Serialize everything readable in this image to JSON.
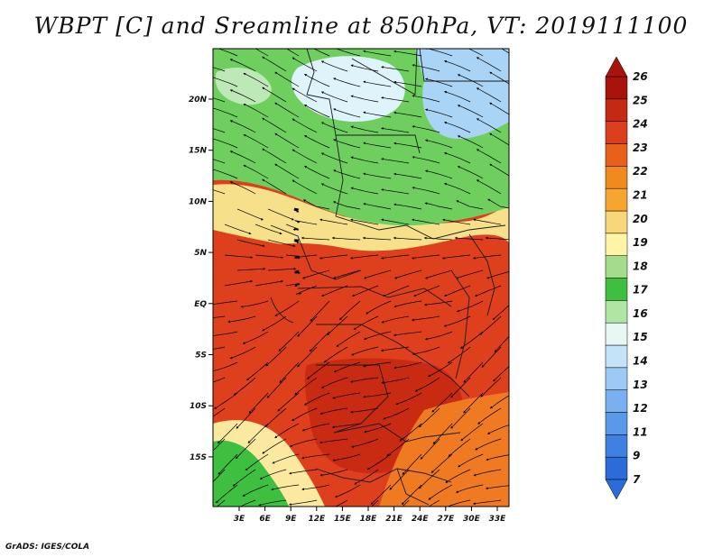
{
  "title": "WBPT [C] and Sreamline at 850hPa, VT: 2019111100",
  "credit": "GrADS: IGES/COLA",
  "map": {
    "lon_labels": [
      "3E",
      "6E",
      "9E",
      "12E",
      "15E",
      "18E",
      "21E",
      "24E",
      "27E",
      "30E",
      "33E"
    ],
    "lat_labels": [
      "20N",
      "15N",
      "10N",
      "5N",
      "EQ",
      "5S",
      "10S",
      "15S"
    ],
    "regions": [
      {
        "name": "north-cool-band",
        "value": 16,
        "color": "#6fcf5e"
      },
      {
        "name": "northeast-cold-patch",
        "value": 13,
        "color": "#a9d4f5"
      },
      {
        "name": "north-center-cold-patch",
        "value": 15,
        "color": "#dff3fa"
      },
      {
        "name": "transition-band",
        "value": 19,
        "color": "#f6e08a"
      },
      {
        "name": "equatorial-core",
        "value": 24,
        "color": "#de3f1c"
      },
      {
        "name": "southern-core",
        "value": 25,
        "color": "#c82a12"
      },
      {
        "name": "southwest-cool",
        "value": 17,
        "color": "#3fbf3f"
      }
    ]
  },
  "colorbar": {
    "levels": [
      "7",
      "9",
      "11",
      "12",
      "13",
      "14",
      "15",
      "16",
      "17",
      "18",
      "19",
      "20",
      "21",
      "22",
      "23",
      "24",
      "25",
      "26"
    ],
    "colors": [
      "#2b6cd8",
      "#3f80e2",
      "#5a98ea",
      "#79b0f0",
      "#9ccaf4",
      "#c4e2f8",
      "#e8f7f2",
      "#aee6a4",
      "#3fbf3f",
      "#a3dd8a",
      "#fff3a6",
      "#f7d77a",
      "#f6a52f",
      "#f08a1d",
      "#e8601a",
      "#dc3f1b",
      "#c42a13",
      "#a8140c"
    ]
  }
}
